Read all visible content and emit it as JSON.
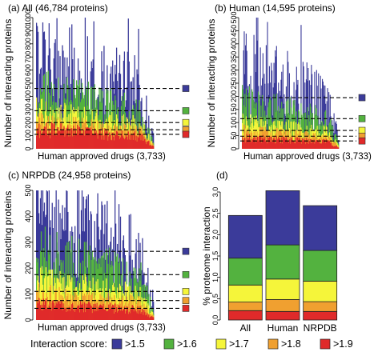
{
  "figure": {
    "legend": {
      "title": "Interaction score:",
      "items": [
        {
          "label": ">1.5",
          "color": "#3b3b9a"
        },
        {
          "label": ">1.6",
          "color": "#53b23f"
        },
        {
          "label": ">1.7",
          "color": "#f5f53a"
        },
        {
          "label": ">1.8",
          "color": "#f0a030"
        },
        {
          "label": ">1.9",
          "color": "#e02a2a"
        }
      ]
    }
  },
  "chart_data": [
    {
      "type": "area",
      "panel": "(a)",
      "title": "All (46,784 proteins)",
      "xlabel": "Human approved drugs (3,733)",
      "ylabel": "Number of interacting proteins",
      "ylim": [
        0,
        1000
      ],
      "yticks": [
        0,
        100,
        200,
        300,
        400,
        500,
        600,
        700,
        800,
        900,
        1000
      ],
      "grid": false,
      "legend": "none",
      "means": [
        460,
        290,
        200,
        145,
        110
      ]
    },
    {
      "type": "area",
      "panel": "(b)",
      "title": "Human (14,595 proteins)",
      "xlabel": "Human approved drugs (3,733)",
      "ylabel": "Number of interacting proteins",
      "ylim": [
        0,
        500
      ],
      "yticks": [
        0,
        50,
        100,
        150,
        200,
        250,
        300,
        350,
        400,
        450,
        500
      ],
      "grid": false,
      "legend": "none",
      "means": [
        195,
        115,
        70,
        48,
        30
      ]
    },
    {
      "type": "area",
      "panel": "(c)",
      "title": "NRPDB (24,958 proteins)",
      "xlabel": "Human approved drugs (3,733)",
      "ylabel": "Number of interacting proteins",
      "ylim": [
        0,
        500
      ],
      "yticks": [
        0,
        100,
        200,
        300,
        400,
        500
      ],
      "grid": false,
      "legend": "none",
      "means": [
        265,
        175,
        110,
        75,
        45
      ]
    },
    {
      "type": "bar",
      "stacked": true,
      "panel": "(d)",
      "ylabel": "% proteome interaction",
      "ylim": [
        0,
        3.0
      ],
      "yticks": [
        0.0,
        0.5,
        1.0,
        1.5,
        2.0,
        2.5,
        3.0
      ],
      "categories": [
        "All",
        "Human",
        "NRPDB"
      ],
      "series": [
        {
          "name": ">1.9",
          "values": [
            0.22,
            0.2,
            0.2
          ]
        },
        {
          "name": ">1.8",
          "values": [
            0.2,
            0.28,
            0.23
          ]
        },
        {
          "name": ">1.7",
          "values": [
            0.4,
            0.48,
            0.48
          ]
        },
        {
          "name": ">1.6",
          "values": [
            0.63,
            0.8,
            0.72
          ]
        },
        {
          "name": ">1.5",
          "values": [
            1.0,
            1.27,
            1.05
          ]
        }
      ],
      "totals": [
        2.45,
        3.03,
        2.68
      ]
    }
  ]
}
